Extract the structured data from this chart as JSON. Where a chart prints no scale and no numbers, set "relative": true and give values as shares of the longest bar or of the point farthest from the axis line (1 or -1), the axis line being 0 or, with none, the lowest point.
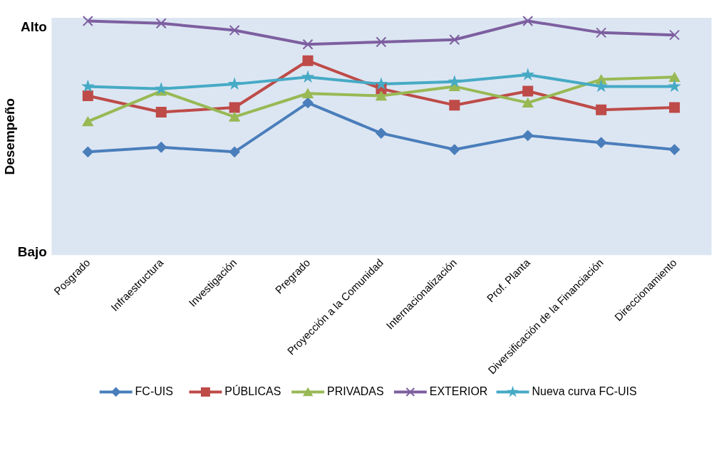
{
  "chart_data": {
    "type": "line",
    "ylabel": "Desempeño",
    "relative": true,
    "annotations": [
      "Alto",
      "Bajo"
    ],
    "categories": [
      "Posgrado",
      "Infraestructura",
      "Investigación",
      "Pregrado",
      "Proyección a la Comunidad",
      "Internacionalización",
      "Prof. Planta",
      "Diversificación de la Financiación",
      "Direccionamiento"
    ],
    "series": [
      {
        "name": "FC-UIS",
        "color": "#4a7ebb",
        "marker": "diamond",
        "values": [
          0.44,
          0.46,
          0.44,
          0.65,
          0.52,
          0.45,
          0.51,
          0.48,
          0.45
        ]
      },
      {
        "name": "PÚBLICAS",
        "color": "#be4b48",
        "marker": "square",
        "values": [
          0.68,
          0.61,
          0.63,
          0.83,
          0.71,
          0.64,
          0.7,
          0.62,
          0.63
        ]
      },
      {
        "name": "PRIVADAS",
        "color": "#98b954",
        "marker": "triangle",
        "values": [
          0.57,
          0.7,
          0.59,
          0.69,
          0.68,
          0.72,
          0.65,
          0.75,
          0.76
        ]
      },
      {
        "name": "EXTERIOR",
        "color": "#7d5fa0",
        "marker": "cross",
        "values": [
          1,
          0.99,
          0.96,
          0.9,
          0.91,
          0.92,
          1,
          0.95,
          0.94
        ]
      },
      {
        "name": "Nueva curva FC-UIS",
        "color": "#46aac5",
        "marker": "star",
        "values": [
          0.72,
          0.71,
          0.73,
          0.76,
          0.73,
          0.74,
          0.77,
          0.72,
          0.72
        ]
      }
    ],
    "legend": "bottom",
    "line_style": "solid"
  }
}
